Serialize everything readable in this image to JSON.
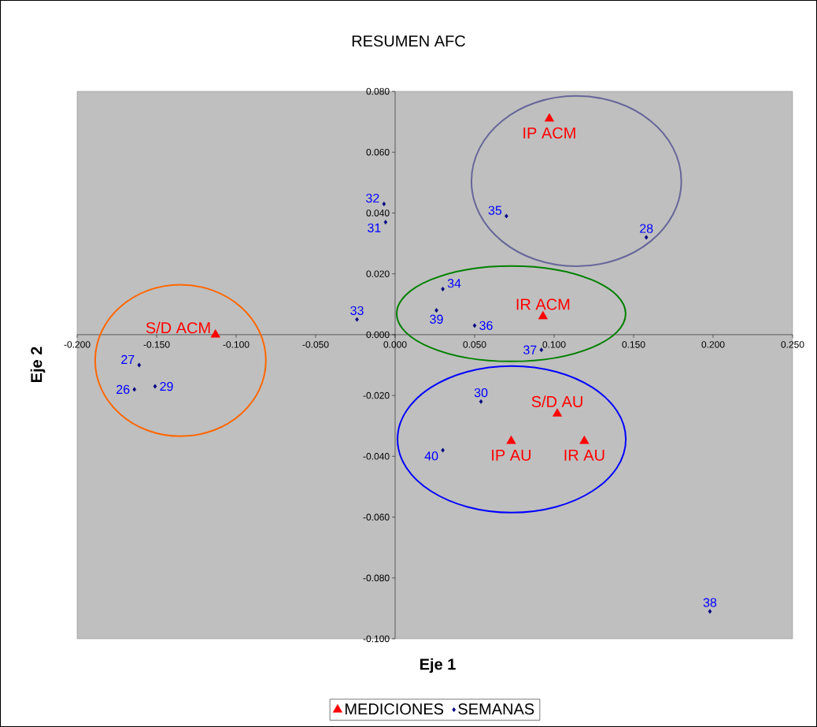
{
  "chart_data": {
    "type": "scatter",
    "title": "RESUMEN AFC",
    "xlabel": "Eje 1",
    "ylabel": "Eje 2",
    "xlim": [
      -0.2,
      0.25
    ],
    "ylim": [
      -0.1,
      0.08
    ],
    "xticks": [
      {
        "value": -0.2,
        "label": "-0.200"
      },
      {
        "value": -0.15,
        "label": "-0.150"
      },
      {
        "value": -0.1,
        "label": "-0.100"
      },
      {
        "value": -0.05,
        "label": "-0.050"
      },
      {
        "value": 0,
        "label": "0.000"
      },
      {
        "value": 0.05,
        "label": "0.050"
      },
      {
        "value": 0.1,
        "label": "0.100"
      },
      {
        "value": 0.15,
        "label": "0.150"
      },
      {
        "value": 0.2,
        "label": "0.200"
      },
      {
        "value": 0.25,
        "label": "0.250"
      }
    ],
    "yticks": [
      {
        "value": -0.1,
        "label": "-0.100"
      },
      {
        "value": -0.08,
        "label": "-0.080"
      },
      {
        "value": -0.06,
        "label": "-0.060"
      },
      {
        "value": -0.04,
        "label": "-0.040"
      },
      {
        "value": -0.02,
        "label": "-0.020"
      },
      {
        "value": 0,
        "label": "0.000"
      },
      {
        "value": 0.02,
        "label": "0.020"
      },
      {
        "value": 0.04,
        "label": "0.040"
      },
      {
        "value": 0.06,
        "label": "0.060"
      },
      {
        "value": 0.08,
        "label": "0.080"
      }
    ],
    "legend": "bottom",
    "grid": false,
    "series": [
      {
        "name": "MEDICIONES",
        "color": "#ff0000",
        "marker": "triangle",
        "x": [
          0.097,
          0.093,
          -0.113,
          0.102,
          0.073,
          0.119
        ],
        "values": [
          0.071,
          0.006,
          0.0,
          -0.026,
          -0.035,
          -0.035
        ]
      },
      {
        "name": "SEMANAS",
        "color": "#000080",
        "marker": "diamond",
        "x": [
          -0.007,
          -0.006,
          0.07,
          0.158,
          0.03,
          -0.024,
          0.026,
          0.05,
          0.092,
          -0.161,
          -0.164,
          -0.151,
          0.054,
          0.03,
          0.198
        ],
        "values": [
          0.043,
          0.037,
          0.039,
          0.032,
          0.015,
          0.005,
          0.008,
          0.003,
          -0.005,
          -0.01,
          -0.018,
          -0.017,
          -0.022,
          -0.038,
          -0.091
        ]
      }
    ],
    "annotations": [
      {
        "text": "IP ACM",
        "x": 0.097,
        "y": 0.071
      },
      {
        "text": "IR ACM",
        "x": 0.093,
        "y": 0.006
      },
      {
        "text": "S/D ACM",
        "x": -0.113,
        "y": 0.0
      },
      {
        "text": "S/D AU",
        "x": 0.102,
        "y": -0.026
      },
      {
        "text": "IP AU",
        "x": 0.073,
        "y": -0.035
      },
      {
        "text": "IR AU",
        "x": 0.119,
        "y": -0.035
      },
      {
        "text": "32",
        "x": -0.007,
        "y": 0.043
      },
      {
        "text": "31",
        "x": -0.006,
        "y": 0.037
      },
      {
        "text": "35",
        "x": 0.07,
        "y": 0.039
      },
      {
        "text": "28",
        "x": 0.158,
        "y": 0.032
      },
      {
        "text": "34",
        "x": 0.03,
        "y": 0.015
      },
      {
        "text": "33",
        "x": -0.024,
        "y": 0.005
      },
      {
        "text": "39",
        "x": 0.026,
        "y": 0.008
      },
      {
        "text": "36",
        "x": 0.05,
        "y": 0.003
      },
      {
        "text": "37",
        "x": 0.092,
        "y": -0.005
      },
      {
        "text": "27",
        "x": -0.161,
        "y": -0.01
      },
      {
        "text": "26",
        "x": -0.164,
        "y": -0.018
      },
      {
        "text": "29",
        "x": -0.151,
        "y": -0.017
      },
      {
        "text": "30",
        "x": 0.054,
        "y": -0.022
      },
      {
        "text": "40",
        "x": 0.03,
        "y": -0.038
      },
      {
        "text": "38",
        "x": 0.198,
        "y": -0.091
      }
    ]
  }
}
